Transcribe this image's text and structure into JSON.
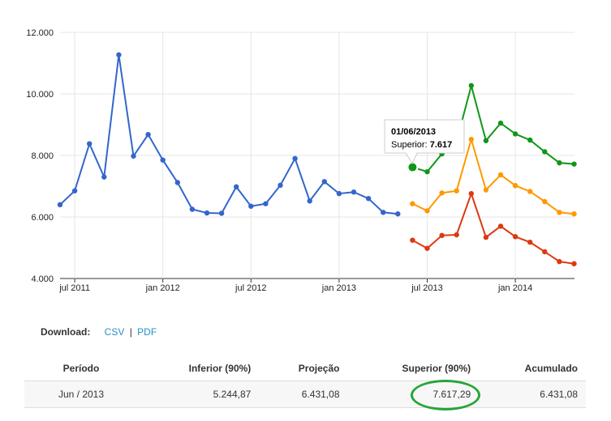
{
  "chart_data": {
    "type": "line",
    "x": [
      "2011-06",
      "2011-07",
      "2011-08",
      "2011-09",
      "2011-10",
      "2011-11",
      "2011-12",
      "2012-01",
      "2012-02",
      "2012-03",
      "2012-04",
      "2012-05",
      "2012-06",
      "2012-07",
      "2012-08",
      "2012-09",
      "2012-10",
      "2012-11",
      "2012-12",
      "2013-01",
      "2013-02",
      "2013-03",
      "2013-04",
      "2013-05",
      "2013-06",
      "2013-07",
      "2013-08",
      "2013-09",
      "2013-10",
      "2013-11",
      "2013-12",
      "2014-01",
      "2014-02",
      "2014-03",
      "2014-04",
      "2014-05"
    ],
    "series": [
      {
        "color": "#3366cc",
        "values": [
          6400,
          6850,
          8380,
          7300,
          11270,
          7980,
          8680,
          7850,
          7120,
          6250,
          6130,
          6120,
          6980,
          6350,
          6430,
          7030,
          7900,
          6520,
          7150,
          6760,
          6810,
          6600,
          6150,
          6100,
          null,
          null,
          null,
          null,
          null,
          null,
          null,
          null,
          null,
          null,
          null,
          null
        ]
      },
      {
        "name": "Superior",
        "color": "#109618",
        "values": [
          null,
          null,
          null,
          null,
          null,
          null,
          null,
          null,
          null,
          null,
          null,
          null,
          null,
          null,
          null,
          null,
          null,
          null,
          null,
          null,
          null,
          null,
          null,
          null,
          7617,
          7470,
          8050,
          8450,
          10270,
          8480,
          9050,
          8700,
          8500,
          8120,
          7760,
          7720
        ]
      },
      {
        "color": "#ff9900",
        "values": [
          null,
          null,
          null,
          null,
          null,
          null,
          null,
          null,
          null,
          null,
          null,
          null,
          null,
          null,
          null,
          null,
          null,
          null,
          null,
          null,
          null,
          null,
          null,
          null,
          6431,
          6200,
          6780,
          6850,
          8520,
          6880,
          7370,
          7020,
          6830,
          6500,
          6150,
          6100
        ]
      },
      {
        "color": "#dc3912",
        "values": [
          null,
          null,
          null,
          null,
          null,
          null,
          null,
          null,
          null,
          null,
          null,
          null,
          null,
          null,
          null,
          null,
          null,
          null,
          null,
          null,
          null,
          null,
          null,
          null,
          5245,
          4980,
          5400,
          5420,
          6760,
          5340,
          5700,
          5360,
          5180,
          4870,
          4550,
          4480
        ]
      }
    ],
    "ylim": [
      4000,
      12000
    ],
    "yticks": [
      4000,
      6000,
      8000,
      10000,
      12000
    ],
    "ytick_labels": [
      "4.000",
      "6.000",
      "8.000",
      "10.000",
      "12.000"
    ],
    "xticks": [
      "2011-07",
      "2012-01",
      "2012-07",
      "2013-01",
      "2013-07",
      "2014-01"
    ],
    "xtick_labels": [
      "jul 2011",
      "jan 2012",
      "jul 2012",
      "jan 2013",
      "jul 2013",
      "jan 2014"
    ],
    "grid": true,
    "tooltip": {
      "date": "01/06/2013",
      "series_label": "Superior:",
      "value_label": "7.617",
      "point": {
        "x": "2013-06",
        "y": 7617
      }
    }
  },
  "download": {
    "label": "Download:",
    "csv": "CSV",
    "separator": "|",
    "pdf": "PDF"
  },
  "table": {
    "headers": [
      "Período",
      "Inferior (90%)",
      "Projeção",
      "Superior (90%)",
      "Acumulado"
    ],
    "rows": [
      [
        "Jun / 2013",
        "5.244,87",
        "6.431,08",
        "7.617,29",
        "6.431,08"
      ]
    ],
    "highlight_color": "#27a53b"
  }
}
